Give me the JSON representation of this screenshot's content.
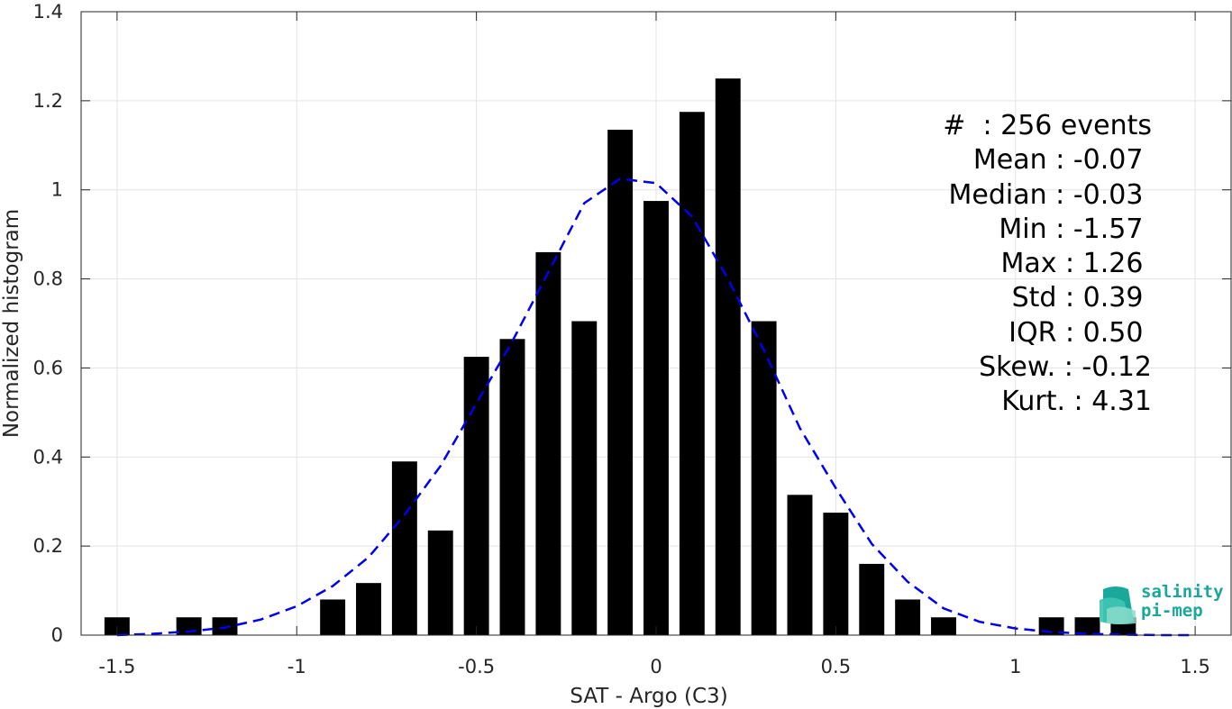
{
  "chart_data": {
    "type": "bar",
    "xlabel": "SAT - Argo (C3)",
    "ylabel": "Normalized histogram",
    "xlim": [
      -1.6,
      1.6
    ],
    "ylim": [
      0,
      1.4
    ],
    "xticks": [
      -1.5,
      -1,
      -0.5,
      0,
      0.5,
      1,
      1.5
    ],
    "xtick_labels": [
      "-1.5",
      "-1",
      "-0.5",
      "0",
      "0.5",
      "1",
      "1.5"
    ],
    "yticks": [
      0,
      0.2,
      0.4,
      0.6,
      0.8,
      1,
      1.2,
      1.4
    ],
    "ytick_labels": [
      "0",
      "0.2",
      "0.4",
      "0.6",
      "0.8",
      "1",
      "1.2",
      "1.4"
    ],
    "grid": true,
    "bars": {
      "color": "#000000",
      "x": [
        -1.5,
        -1.3,
        -1.2,
        -0.9,
        -0.8,
        -0.7,
        -0.6,
        -0.5,
        -0.4,
        -0.3,
        -0.2,
        -0.1,
        0.0,
        0.1,
        0.2,
        0.3,
        0.4,
        0.5,
        0.6,
        0.7,
        0.8,
        1.1,
        1.2,
        1.3
      ],
      "values": [
        0.04,
        0.04,
        0.04,
        0.08,
        0.117,
        0.39,
        0.235,
        0.625,
        0.665,
        0.86,
        0.705,
        1.135,
        0.975,
        1.175,
        1.25,
        0.705,
        0.315,
        0.275,
        0.16,
        0.08,
        0.04,
        0.04,
        0.04,
        0.04
      ]
    },
    "fit_curve": {
      "style": "dashed",
      "color": "#0000ee",
      "x": [
        -1.5,
        -1.4,
        -1.3,
        -1.2,
        -1.1,
        -1.0,
        -0.9,
        -0.8,
        -0.7,
        -0.6,
        -0.5,
        -0.4,
        -0.3,
        -0.2,
        -0.1,
        0.0,
        0.1,
        0.2,
        0.3,
        0.4,
        0.5,
        0.6,
        0.7,
        0.8,
        0.9,
        1.0,
        1.1,
        1.2,
        1.3,
        1.4,
        1.5
      ],
      "y": [
        0.0,
        0.003,
        0.008,
        0.017,
        0.035,
        0.065,
        0.11,
        0.175,
        0.27,
        0.38,
        0.52,
        0.66,
        0.815,
        0.97,
        1.025,
        1.015,
        0.94,
        0.8,
        0.64,
        0.465,
        0.33,
        0.205,
        0.12,
        0.06,
        0.03,
        0.015,
        0.007,
        0.003,
        0.001,
        0.0,
        0.0
      ]
    },
    "annotations": [
      "#  : 256 events",
      "Mean : -0.07 ",
      "Median : -0.03 ",
      "Min : -1.57 ",
      "Max : 1.26 ",
      "Std : 0.39 ",
      "IQR : 0.50 ",
      "Skew. : -0.12",
      "Kurt. : 4.31"
    ]
  },
  "logo": {
    "line1": "salinity",
    "line2": "pi-mep",
    "color": "#1aa89a"
  }
}
